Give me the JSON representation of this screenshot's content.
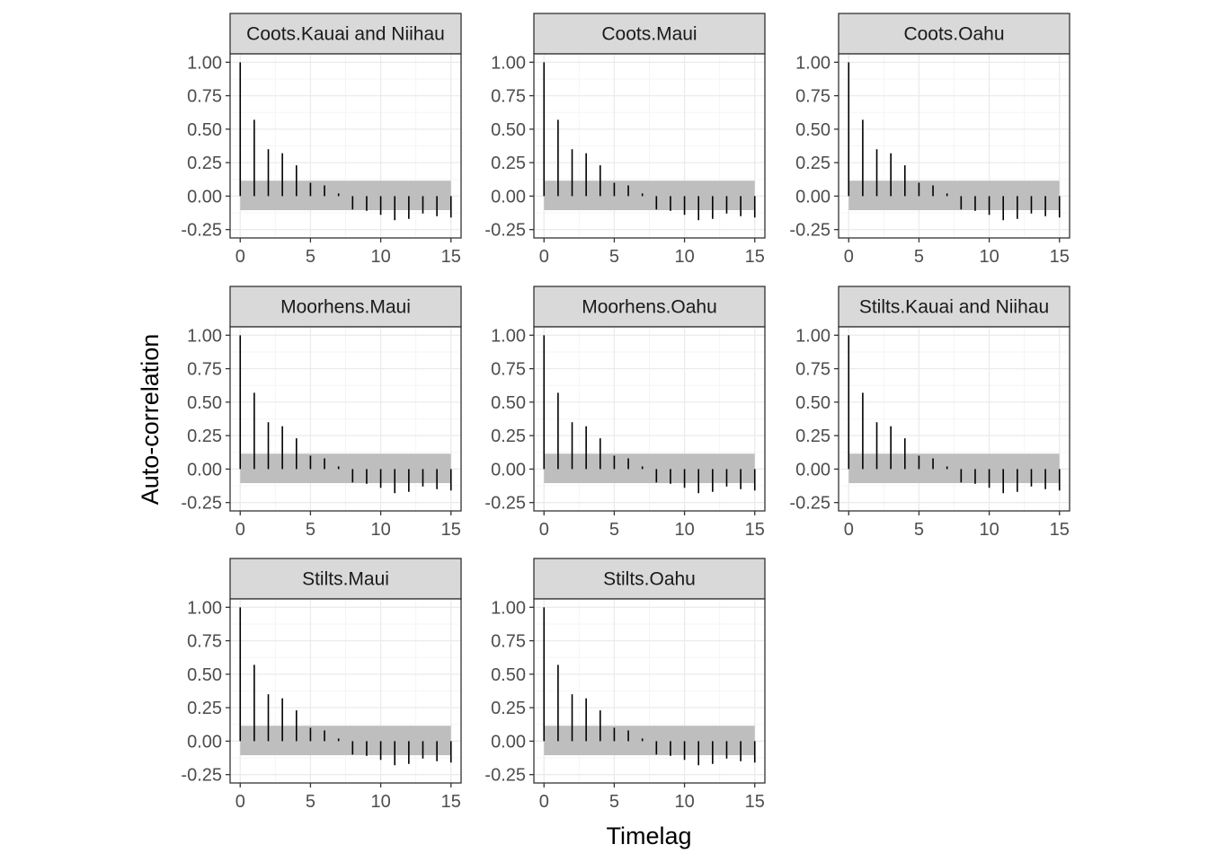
{
  "chart_data": {
    "type": "bar",
    "subtype": "acf-faceted",
    "xlabel": "Timelag",
    "ylabel": "Auto-correlation",
    "xlim": [
      0,
      15
    ],
    "ylim": [
      -0.25,
      1.0
    ],
    "x_ticks": [
      0,
      5,
      10,
      15
    ],
    "y_ticks": [
      -0.25,
      0.0,
      0.25,
      0.5,
      0.75,
      1.0
    ],
    "y_tick_labels": [
      "-0.25",
      "0.00",
      "0.25",
      "0.50",
      "0.75",
      "1.00"
    ],
    "grid": true,
    "confidence_band": [
      -0.105,
      0.115
    ],
    "colors": {
      "segment": "#000000",
      "band": "#bebebe",
      "strip_fill": "#d9d9d9",
      "panel_border": "#333333",
      "grid_major": "#ebebeb",
      "grid_minor": "#f5f5f5"
    },
    "lags": [
      0,
      1,
      2,
      3,
      4,
      5,
      6,
      7,
      8,
      9,
      10,
      11,
      12,
      13,
      14,
      15
    ],
    "panels": [
      {
        "title": "Coots.Kauai and Niihau",
        "acf": [
          1.0,
          0.57,
          0.35,
          0.32,
          0.23,
          0.1,
          0.08,
          0.02,
          -0.1,
          -0.11,
          -0.14,
          -0.18,
          -0.17,
          -0.13,
          -0.15,
          -0.16
        ]
      },
      {
        "title": "Coots.Maui",
        "acf": [
          1.0,
          0.57,
          0.35,
          0.32,
          0.23,
          0.1,
          0.08,
          0.02,
          -0.1,
          -0.11,
          -0.14,
          -0.18,
          -0.17,
          -0.13,
          -0.15,
          -0.16
        ]
      },
      {
        "title": "Coots.Oahu",
        "acf": [
          1.0,
          0.57,
          0.35,
          0.32,
          0.23,
          0.1,
          0.08,
          0.02,
          -0.1,
          -0.11,
          -0.14,
          -0.18,
          -0.17,
          -0.13,
          -0.15,
          -0.16
        ]
      },
      {
        "title": "Moorhens.Maui",
        "acf": [
          1.0,
          0.57,
          0.35,
          0.32,
          0.23,
          0.1,
          0.08,
          0.02,
          -0.1,
          -0.11,
          -0.14,
          -0.18,
          -0.17,
          -0.13,
          -0.15,
          -0.16
        ]
      },
      {
        "title": "Moorhens.Oahu",
        "acf": [
          1.0,
          0.57,
          0.35,
          0.32,
          0.23,
          0.1,
          0.08,
          0.02,
          -0.1,
          -0.11,
          -0.14,
          -0.18,
          -0.17,
          -0.13,
          -0.15,
          -0.16
        ]
      },
      {
        "title": "Stilts.Kauai and Niihau",
        "acf": [
          1.0,
          0.57,
          0.35,
          0.32,
          0.23,
          0.1,
          0.08,
          0.02,
          -0.1,
          -0.11,
          -0.14,
          -0.18,
          -0.17,
          -0.13,
          -0.15,
          -0.16
        ]
      },
      {
        "title": "Stilts.Maui",
        "acf": [
          1.0,
          0.57,
          0.35,
          0.32,
          0.23,
          0.1,
          0.08,
          0.02,
          -0.1,
          -0.11,
          -0.14,
          -0.18,
          -0.17,
          -0.13,
          -0.15,
          -0.16
        ]
      },
      {
        "title": "Stilts.Oahu",
        "acf": [
          1.0,
          0.57,
          0.35,
          0.32,
          0.23,
          0.1,
          0.08,
          0.02,
          -0.1,
          -0.11,
          -0.14,
          -0.18,
          -0.17,
          -0.13,
          -0.15,
          -0.16
        ]
      }
    ]
  }
}
